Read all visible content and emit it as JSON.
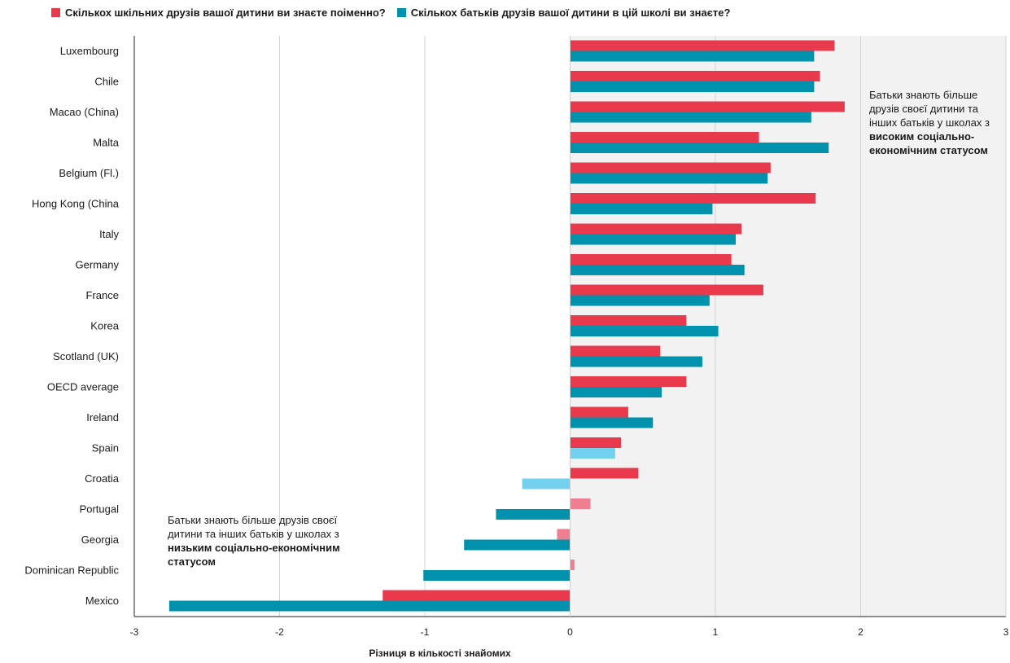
{
  "chart_data": {
    "type": "bar",
    "orientation": "horizontal",
    "xlabel": "Різниця в кількості знайомих",
    "xlim": [
      -3,
      3
    ],
    "xticks": [
      -3,
      -2,
      -1,
      0,
      1,
      2,
      3
    ],
    "grid": true,
    "legend_position": "top-left",
    "categories": [
      "Luxembourg",
      "Chile",
      "Macao (China)",
      "Malta",
      "Belgium (Fl.)",
      "Hong Kong (China",
      "Italy",
      "Germany",
      "France",
      "Korea",
      "Scotland (UK)",
      "OECD average",
      "Ireland",
      "Spain",
      "Croatia",
      "Portugal",
      "Georgia",
      "Dominican Republic",
      "Mexico"
    ],
    "series": [
      {
        "name": "Скількох шкільних друзів вашої дитини ви знаєте поіменно?",
        "color": "#e8394d",
        "light_color": "#ef7f90",
        "values": [
          1.82,
          1.72,
          1.89,
          1.3,
          1.38,
          1.69,
          1.18,
          1.11,
          1.33,
          0.8,
          0.62,
          0.8,
          0.4,
          0.35,
          0.47,
          0.14,
          -0.09,
          0.03,
          -1.29
        ],
        "non_significant": [
          false,
          false,
          false,
          false,
          false,
          false,
          false,
          false,
          false,
          false,
          false,
          false,
          false,
          false,
          false,
          true,
          true,
          true,
          false
        ]
      },
      {
        "name": "Скількох батьків друзів вашої дитини в цій школі ви знаєте?",
        "color": "#0092ad",
        "light_color": "#73d0ee",
        "values": [
          1.68,
          1.68,
          1.66,
          1.78,
          1.36,
          0.98,
          1.14,
          1.2,
          0.96,
          1.02,
          0.91,
          0.63,
          0.57,
          0.31,
          -0.33,
          -0.51,
          -0.73,
          -1.01,
          -2.76
        ],
        "non_significant": [
          false,
          false,
          false,
          false,
          false,
          false,
          false,
          false,
          false,
          false,
          false,
          false,
          false,
          true,
          true,
          false,
          false,
          false,
          false
        ]
      }
    ],
    "shaded_region": {
      "from": 0,
      "to": 3,
      "color": "#f2f2f2"
    },
    "annotations": {
      "high": {
        "text": "Батьки знають більше друзів своєї дитини та інших батьків у школах з ",
        "bold": "високим соціально-економічним статусом"
      },
      "low": {
        "text": "Батьки знають більше друзів своєї дитини та інших батьків у школах з ",
        "bold": "низьким соціально-економічним статусом"
      }
    }
  }
}
